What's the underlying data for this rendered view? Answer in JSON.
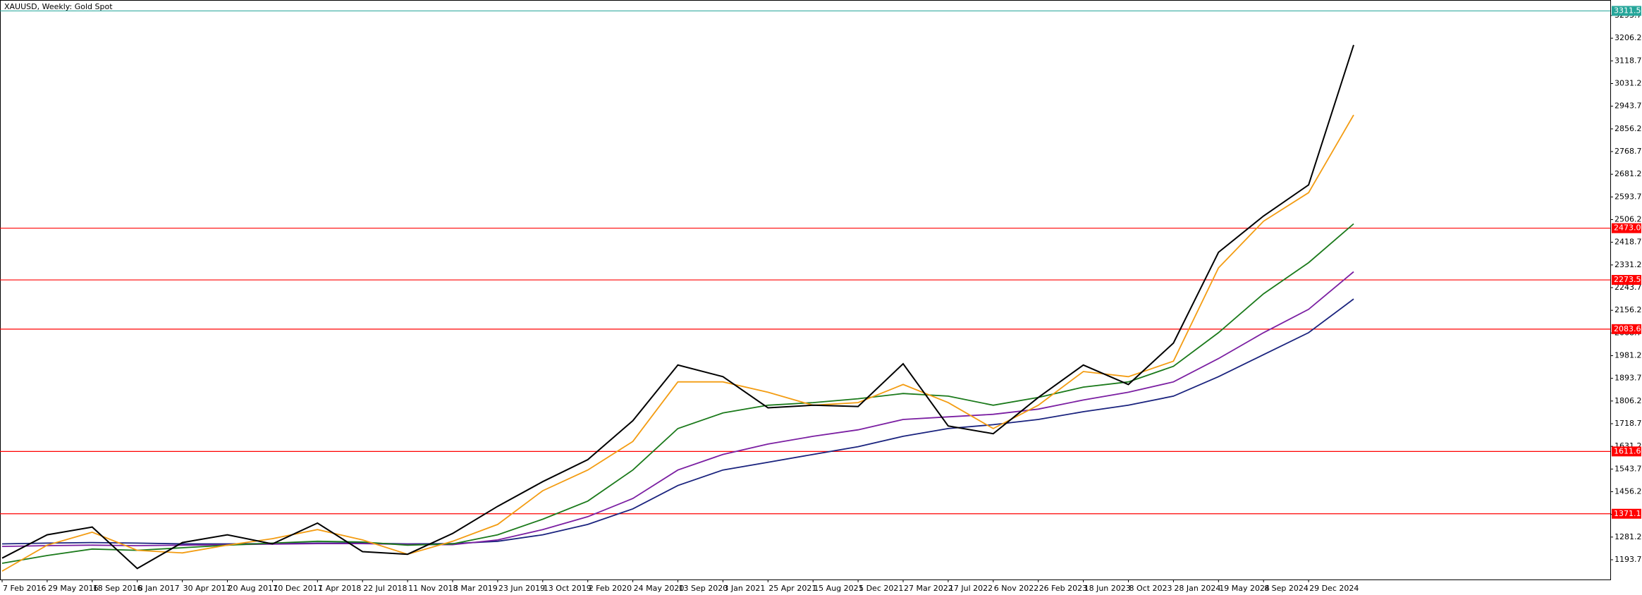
{
  "chart_data": {
    "type": "line",
    "title": "XAUUSD, Weekly:  Gold Spot",
    "categories": [
      "7 Feb 2016",
      "29 May 2016",
      "18 Sep 2016",
      "8 Jan 2017",
      "30 Apr 2017",
      "20 Aug 2017",
      "10 Dec 2017",
      "1 Apr 2018",
      "22 Jul 2018",
      "11 Nov 2018",
      "3 Mar 2019",
      "23 Jun 2019",
      "13 Oct 2019",
      "2 Feb 2020",
      "24 May 2020",
      "13 Sep 2020",
      "3 Jan 2021",
      "25 Apr 2021",
      "15 Aug 2021",
      "5 Dec 2021",
      "27 Mar 2022",
      "17 Jul 2022",
      "6 Nov 2022",
      "26 Feb 2023",
      "18 Jun 2023",
      "8 Oct 2023",
      "28 Jan 2024",
      "19 May 2024",
      "8 Sep 2024",
      "29 Dec 2024",
      null
    ],
    "series": [
      {
        "color": "#1a237e",
        "values": [
          1255,
          1258,
          1260,
          1258,
          1255,
          1255,
          1256,
          1258,
          1258,
          1255,
          1256,
          1265,
          1290,
          1330,
          1390,
          1480,
          1540,
          1570,
          1600,
          1630,
          1670,
          1700,
          1715,
          1735,
          1765,
          1790,
          1825,
          1900,
          1985,
          2070,
          2200
        ]
      },
      {
        "color": "#7b1fa2",
        "values": [
          1245,
          1248,
          1250,
          1248,
          1250,
          1252,
          1254,
          1256,
          1256,
          1253,
          1252,
          1270,
          1310,
          1360,
          1430,
          1540,
          1600,
          1640,
          1670,
          1695,
          1735,
          1745,
          1755,
          1775,
          1810,
          1840,
          1880,
          1970,
          2070,
          2160,
          2305
        ]
      },
      {
        "color": "#1b7a1b",
        "values": [
          1180,
          1210,
          1235,
          1230,
          1240,
          1250,
          1258,
          1265,
          1262,
          1250,
          1255,
          1290,
          1350,
          1420,
          1540,
          1700,
          1760,
          1790,
          1800,
          1815,
          1835,
          1825,
          1790,
          1820,
          1860,
          1880,
          1940,
          2070,
          2220,
          2340,
          2490
        ]
      },
      {
        "color": "#f39c12",
        "values": [
          1150,
          1250,
          1300,
          1230,
          1220,
          1250,
          1275,
          1310,
          1270,
          1215,
          1265,
          1330,
          1460,
          1540,
          1650,
          1880,
          1880,
          1840,
          1790,
          1800,
          1870,
          1800,
          1700,
          1790,
          1920,
          1900,
          1960,
          2320,
          2500,
          2610,
          2910
        ]
      },
      {
        "color": "#000000",
        "values": [
          1200,
          1290,
          1320,
          1160,
          1260,
          1290,
          1255,
          1335,
          1225,
          1215,
          1295,
          1400,
          1495,
          1580,
          1730,
          1945,
          1900,
          1780,
          1790,
          1785,
          1950,
          1710,
          1680,
          1820,
          1945,
          1870,
          2030,
          2380,
          2520,
          2640,
          3180
        ]
      }
    ],
    "ylim": [
      1117.5,
      3342.7
    ],
    "yticks": [
      {
        "value": 1193.7,
        "label": "1193.70"
      },
      {
        "value": 1281.2,
        "label": "1281.20"
      },
      {
        "value": 1368.7,
        "label": "1368.70"
      },
      {
        "value": 1456.2,
        "label": "1456.20"
      },
      {
        "value": 1543.7,
        "label": "1543.70"
      },
      {
        "value": 1631.2,
        "label": "1631.20"
      },
      {
        "value": 1718.7,
        "label": "1718.70"
      },
      {
        "value": 1806.2,
        "label": "1806.20"
      },
      {
        "value": 1893.7,
        "label": "1893.70"
      },
      {
        "value": 1981.2,
        "label": "1981.20"
      },
      {
        "value": 2068.7,
        "label": "2068.70"
      },
      {
        "value": 2156.2,
        "label": "2156.20"
      },
      {
        "value": 2243.7,
        "label": "2243.70"
      },
      {
        "value": 2331.2,
        "label": "2331.20"
      },
      {
        "value": 2418.7,
        "label": "2418.70"
      },
      {
        "value": 2506.2,
        "label": "2506.20"
      },
      {
        "value": 2593.7,
        "label": "2593.70"
      },
      {
        "value": 2681.2,
        "label": "2681.20"
      },
      {
        "value": 2768.7,
        "label": "2768.70"
      },
      {
        "value": 2856.2,
        "label": "2856.20"
      },
      {
        "value": 2943.7,
        "label": "2943.70"
      },
      {
        "value": 3031.2,
        "label": "3031.20"
      },
      {
        "value": 3118.7,
        "label": "3118.70"
      },
      {
        "value": 3206.2,
        "label": "3206.20"
      },
      {
        "value": 3293.7,
        "label": "3293.70"
      }
    ],
    "levels": [
      1371.16,
      1611.63,
      2083.62,
      2273.51,
      2473.07
    ],
    "level_color": "#ff0000",
    "last_price": 3311.55,
    "last_price_color": "#26a69a",
    "grid": false
  }
}
